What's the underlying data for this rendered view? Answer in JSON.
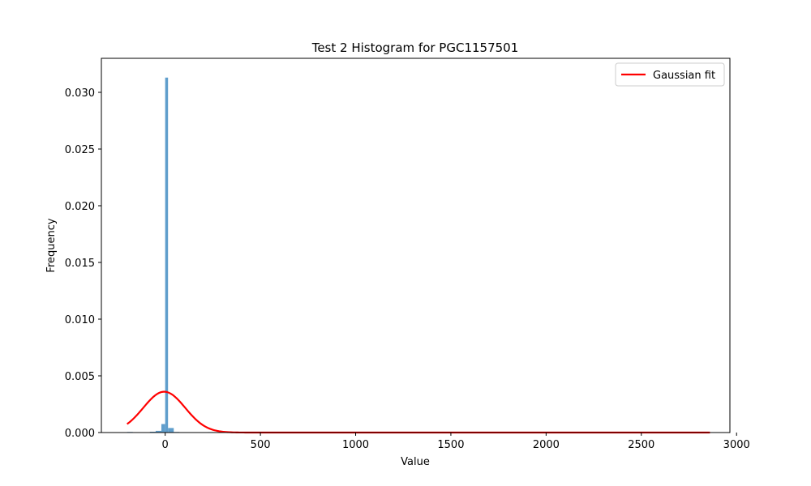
{
  "chart_data": {
    "type": "bar",
    "title": "Test 2 Histogram for PGC1157501",
    "xlabel": "Value",
    "ylabel": "Frequency",
    "xlim": [
      -335,
      2965
    ],
    "ylim": [
      0,
      0.033
    ],
    "xticks": [
      0,
      500,
      1000,
      1500,
      2000,
      2500,
      3000
    ],
    "xtick_labels": [
      "0",
      "500",
      "1000",
      "1500",
      "2000",
      "2500",
      "3000"
    ],
    "yticks": [
      0.0,
      0.005,
      0.01,
      0.015,
      0.02,
      0.025,
      0.03
    ],
    "ytick_labels": [
      "0.000",
      "0.005",
      "0.010",
      "0.015",
      "0.020",
      "0.025",
      "0.030"
    ],
    "grid": false,
    "legend_position": "top-right",
    "bar_color": "#5f9ecc",
    "series": [
      {
        "kind": "histogram",
        "bin_edges": [
          -200,
          -170,
          -140,
          -110,
          -80,
          -50,
          -20,
          0,
          15,
          45,
          75,
          105,
          135,
          165,
          195,
          225,
          255
        ],
        "values": [
          5e-05,
          0.0,
          3e-05,
          0.0,
          7e-05,
          0.00015,
          0.00075,
          0.0313,
          0.0004,
          5e-05,
          2e-05,
          0.0,
          0.0,
          0.0,
          0.0,
          4e-05
        ]
      },
      {
        "name": "Gaussian fit",
        "kind": "line",
        "color": "#ff0000",
        "mean": -5,
        "sigma": 110,
        "peak": 0.0036,
        "x_range": [
          -200,
          2860
        ]
      }
    ],
    "legend": [
      "Gaussian fit"
    ]
  }
}
